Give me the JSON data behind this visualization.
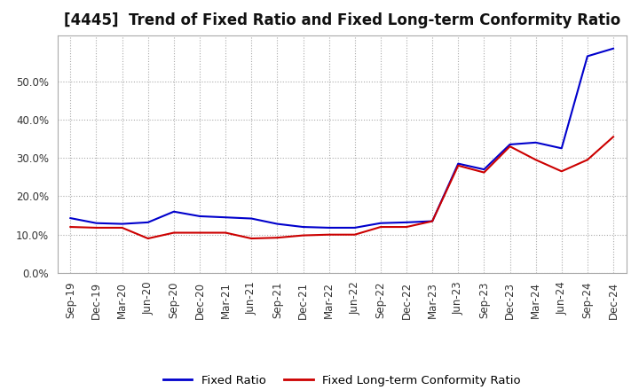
{
  "title": "[4445]  Trend of Fixed Ratio and Fixed Long-term Conformity Ratio",
  "title_fontsize": 12,
  "ylim": [
    0.0,
    0.62
  ],
  "yticks": [
    0.0,
    0.1,
    0.2,
    0.3,
    0.4,
    0.5
  ],
  "ytick_labels": [
    "0.0%",
    "10.0%",
    "20.0%",
    "30.0%",
    "40.0%",
    "50.0%"
  ],
  "background_color": "#ffffff",
  "grid_color": "#aaaaaa",
  "x_labels": [
    "Sep-19",
    "Dec-19",
    "Mar-20",
    "Jun-20",
    "Sep-20",
    "Dec-20",
    "Mar-21",
    "Jun-21",
    "Sep-21",
    "Dec-21",
    "Mar-22",
    "Jun-22",
    "Sep-22",
    "Dec-22",
    "Mar-23",
    "Jun-23",
    "Sep-23",
    "Dec-23",
    "Mar-24",
    "Jun-24",
    "Sep-24",
    "Dec-24"
  ],
  "fixed_ratio": [
    0.143,
    0.13,
    0.128,
    0.132,
    0.16,
    0.148,
    0.145,
    0.142,
    0.128,
    0.12,
    0.118,
    0.118,
    0.13,
    0.132,
    0.135,
    0.285,
    0.27,
    0.335,
    0.34,
    0.325,
    0.565,
    0.585
  ],
  "fixed_lt_ratio": [
    0.12,
    0.118,
    0.118,
    0.09,
    0.105,
    0.105,
    0.105,
    0.09,
    0.092,
    0.098,
    0.1,
    0.1,
    0.12,
    0.12,
    0.135,
    0.28,
    0.262,
    0.33,
    0.295,
    0.265,
    0.295,
    0.355
  ],
  "fixed_ratio_color": "#0000cc",
  "fixed_lt_ratio_color": "#cc0000",
  "line_width": 1.5,
  "legend_labels": [
    "Fixed Ratio",
    "Fixed Long-term Conformity Ratio"
  ],
  "tick_label_fontsize": 8.5,
  "legend_fontsize": 9.5
}
